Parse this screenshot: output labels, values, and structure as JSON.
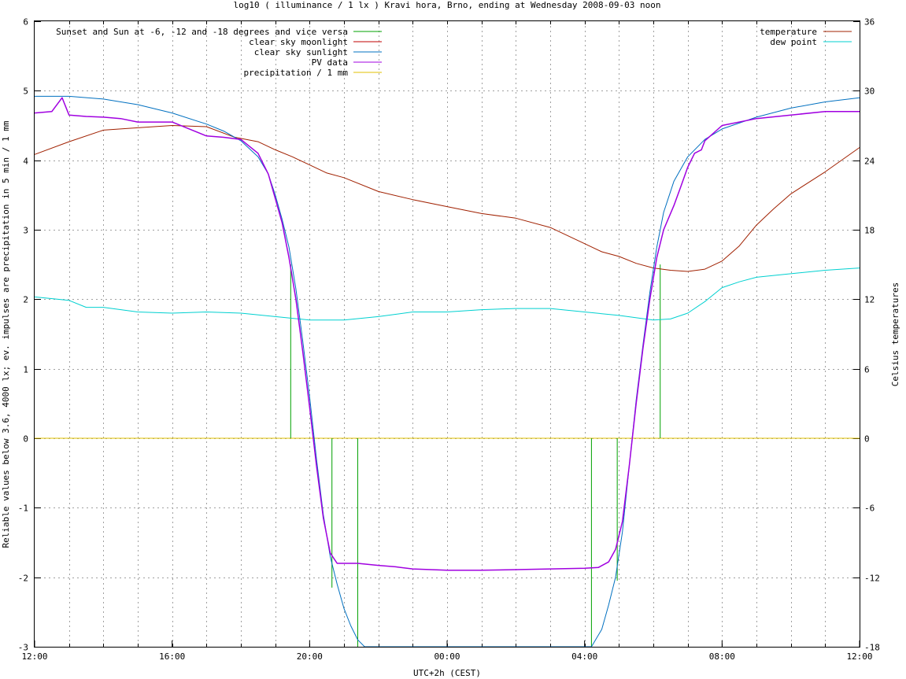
{
  "chart_data": {
    "type": "line",
    "title": "log10 ( illuminance / 1 lx ) Kravi hora, Brno, ending at Wednesday 2008-09-03 noon",
    "xlabel": "UTC+2h (CEST)",
    "ylabel": "Reliable values below 3.6, 4000 lx; ev. impulses are precipitation in 5 min / 1 mm",
    "y2label": "Celsius temperatures",
    "x_unit": "hours since 12:00 (UTC+2h)",
    "xlim": [
      0,
      24
    ],
    "ylim": [
      -3,
      6
    ],
    "y2lim": [
      -18,
      36
    ],
    "x_ticks": [
      {
        "x": 0,
        "label": "12:00"
      },
      {
        "x": 4,
        "label": "16:00"
      },
      {
        "x": 8,
        "label": "20:00"
      },
      {
        "x": 12,
        "label": "00:00"
      },
      {
        "x": 16,
        "label": "04:00"
      },
      {
        "x": 20,
        "label": "08:00"
      },
      {
        "x": 24,
        "label": "12:00"
      }
    ],
    "x_minor_every": 1,
    "y_ticks": [
      "-3",
      "-2",
      "-1",
      "0",
      "1",
      "2",
      "3",
      "4",
      "5",
      "6"
    ],
    "y2_ticks": [
      "-18",
      "-12",
      "-6",
      "0",
      "6",
      "12",
      "18",
      "24",
      "30",
      "36"
    ],
    "grid": true,
    "legend_left": "top-left",
    "legend_right": "top-right",
    "series": [
      {
        "name": "Sunset and Sun at -6, -12 and -18 degrees and vice versa",
        "color": "#00a000",
        "axis": "left",
        "kind": "impulses",
        "points": [
          {
            "x": 7.45,
            "y": 2.5
          },
          {
            "x": 8.65,
            "y": -2.15
          },
          {
            "x": 9.4,
            "y": -3
          },
          {
            "x": 16.2,
            "y": -3
          },
          {
            "x": 16.95,
            "y": -2.05
          },
          {
            "x": 18.2,
            "y": 2.5
          }
        ]
      },
      {
        "name": "clear sky moonlight",
        "color": "#c00000",
        "axis": "left",
        "kind": "line",
        "x": [],
        "y": []
      },
      {
        "name": "clear sky sunlight",
        "color": "#0070c0",
        "axis": "left",
        "kind": "line",
        "x": [
          0,
          1,
          2,
          3,
          4,
          5,
          5.5,
          6,
          6.5,
          6.8,
          7.0,
          7.2,
          7.4,
          7.6,
          7.8,
          8.0,
          8.2,
          8.4,
          8.6,
          8.8,
          9.0,
          9.2,
          9.4,
          9.6,
          16.2,
          16.5,
          16.7,
          16.9,
          17.1,
          17.3,
          17.5,
          17.7,
          17.9,
          18.1,
          18.3,
          18.6,
          19.0,
          19.5,
          20,
          21,
          22,
          23,
          24
        ],
        "y": [
          4.92,
          4.92,
          4.88,
          4.8,
          4.68,
          4.52,
          4.42,
          4.28,
          4.05,
          3.8,
          3.5,
          3.15,
          2.75,
          2.15,
          1.4,
          0.6,
          -0.3,
          -1.1,
          -1.7,
          -2.1,
          -2.45,
          -2.7,
          -2.9,
          -3.0,
          -3.0,
          -2.75,
          -2.4,
          -2.0,
          -1.35,
          -0.4,
          0.55,
          1.35,
          2.1,
          2.75,
          3.25,
          3.7,
          4.05,
          4.3,
          4.45,
          4.62,
          4.75,
          4.84,
          4.9
        ]
      },
      {
        "name": "PV data",
        "color": "#a000e0",
        "axis": "left",
        "kind": "line",
        "x": [
          0,
          0.5,
          0.8,
          1,
          1.5,
          2,
          2.5,
          3,
          3.5,
          4,
          4.5,
          5,
          5.5,
          6,
          6.5,
          6.8,
          7.0,
          7.2,
          7.4,
          7.6,
          7.8,
          8.0,
          8.2,
          8.4,
          8.6,
          8.8,
          9.0,
          9.4,
          9.8,
          10,
          10.5,
          11,
          12,
          13,
          14,
          15,
          16,
          16.4,
          16.7,
          16.9,
          17.1,
          17.3,
          17.5,
          17.7,
          17.9,
          18.1,
          18.3,
          18.6,
          18.8,
          19.0,
          19.2,
          19.4,
          19.5,
          20,
          21,
          22,
          23,
          24
        ],
        "y": [
          4.68,
          4.7,
          4.9,
          4.65,
          4.63,
          4.62,
          4.6,
          4.55,
          4.55,
          4.55,
          4.45,
          4.35,
          4.33,
          4.3,
          4.1,
          3.8,
          3.45,
          3.1,
          2.6,
          2.0,
          1.25,
          0.45,
          -0.4,
          -1.15,
          -1.65,
          -1.8,
          -1.8,
          -1.8,
          -1.82,
          -1.83,
          -1.85,
          -1.88,
          -1.9,
          -1.9,
          -1.89,
          -1.88,
          -1.87,
          -1.86,
          -1.78,
          -1.6,
          -1.2,
          -0.4,
          0.5,
          1.3,
          2.0,
          2.6,
          3.0,
          3.35,
          3.62,
          3.9,
          4.1,
          4.15,
          4.28,
          4.5,
          4.6,
          4.65,
          4.7,
          4.7
        ]
      },
      {
        "name": "precipitation / 1 mm",
        "color": "#e0c000",
        "axis": "left",
        "kind": "line",
        "x": [
          0,
          24
        ],
        "y": [
          0,
          0
        ]
      },
      {
        "name": "temperature",
        "color": "#a02000",
        "axis": "right",
        "kind": "line",
        "x": [
          0,
          1,
          2,
          3,
          4,
          5,
          5.8,
          6.5,
          7,
          7.5,
          8,
          8.5,
          9,
          10,
          11,
          12,
          13,
          14,
          15,
          16,
          16.5,
          17,
          17.5,
          18,
          18.5,
          19,
          19.5,
          20,
          20.5,
          21,
          21.5,
          22,
          23,
          24
        ],
        "y": [
          24.5,
          25.6,
          26.6,
          26.8,
          27.0,
          26.9,
          26.0,
          25.6,
          24.9,
          24.3,
          23.6,
          22.9,
          22.5,
          21.3,
          20.6,
          20.0,
          19.4,
          19.0,
          18.2,
          16.8,
          16.1,
          15.7,
          15.1,
          14.7,
          14.5,
          14.4,
          14.6,
          15.3,
          16.6,
          18.4,
          19.8,
          21.1,
          23.0,
          25.1
        ]
      },
      {
        "name": "dew point",
        "color": "#00d0d0",
        "axis": "right",
        "kind": "line",
        "x": [
          0,
          1,
          1.5,
          2,
          3,
          4,
          5,
          6,
          7,
          8,
          9,
          10,
          11,
          12,
          13,
          14,
          15,
          16,
          17,
          18,
          18.5,
          19,
          19.5,
          20,
          20.5,
          21,
          22,
          23,
          24
        ],
        "y": [
          12.2,
          11.9,
          11.3,
          11.3,
          10.9,
          10.8,
          10.9,
          10.8,
          10.5,
          10.2,
          10.2,
          10.5,
          10.9,
          10.9,
          11.1,
          11.2,
          11.2,
          10.9,
          10.6,
          10.2,
          10.3,
          10.8,
          11.8,
          13.0,
          13.5,
          13.9,
          14.2,
          14.5,
          14.7
        ]
      }
    ]
  }
}
